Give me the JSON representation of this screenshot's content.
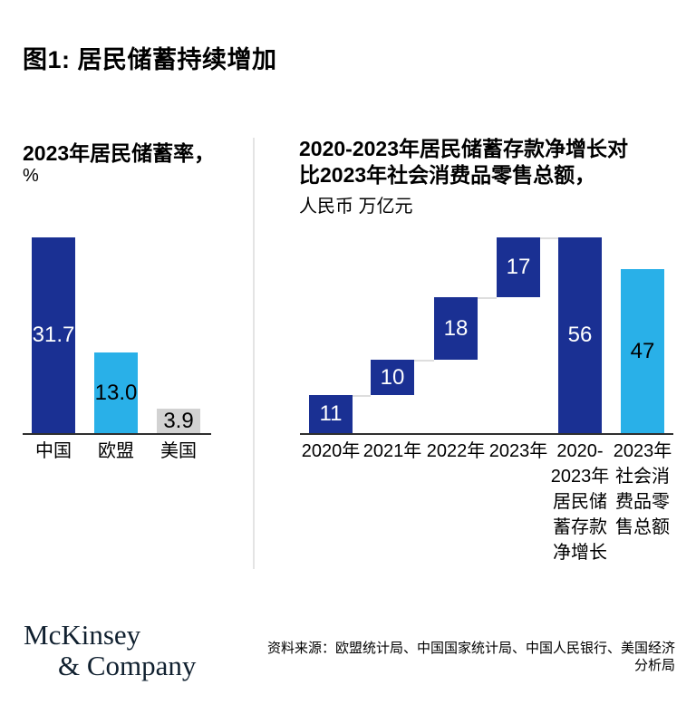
{
  "page": {
    "title": "图1: 居民储蓄持续增加"
  },
  "colors": {
    "navy": "#1a3093",
    "cyan": "#29b0e8",
    "gray": "#d2d2d2",
    "axis": "#2f2f2f",
    "divider": "#e4e4e4",
    "logo_text": "#10202f"
  },
  "left_chart": {
    "title": "2023年居民储蓄率，",
    "unit": "%"
  },
  "right_chart": {
    "title_line1": "2020-2023年居民储蓄存款净增长对",
    "title_line2": "比2023年社会消费品零售总额，",
    "unit": "人民币 万亿元"
  },
  "footer": {
    "logo_line1": "McKinsey",
    "logo_line2": "& Company",
    "source_line1": "资料来源：欧盟统计局、中国国家统计局、中国人民银行、美国经济",
    "source_line2": "分析局"
  },
  "chart_data": [
    {
      "type": "bar",
      "title": "2023年居民储蓄率",
      "unit": "%",
      "categories": [
        "中国",
        "欧盟",
        "美国"
      ],
      "values": [
        31.7,
        13.0,
        3.9
      ],
      "value_labels": [
        "31.7",
        "13.0",
        "3.9"
      ],
      "bar_colors": [
        "navy",
        "cyan",
        "gray"
      ],
      "ylim": [
        0,
        31.7
      ],
      "grid": false,
      "legend": "none"
    },
    {
      "type": "waterfall",
      "title": "2020-2023年居民储蓄存款净增长对比2023年社会消费品零售总额",
      "unit": "人民币 万亿元",
      "categories": [
        "2020年",
        "2021年",
        "2022年",
        "2023年",
        "2020-2023年居民储蓄存款净增长",
        "2023年社会消费品零售总额"
      ],
      "category_label_lines": [
        [
          "2020年"
        ],
        [
          "2021年"
        ],
        [
          "2022年"
        ],
        [
          "2023年"
        ],
        [
          "2020-",
          "2023年",
          "居民储",
          "蓄存款",
          "净增长"
        ],
        [
          "2023年",
          "社会消",
          "费品零",
          "售总额"
        ]
      ],
      "values": [
        11,
        10,
        18,
        17,
        56,
        47
      ],
      "value_labels": [
        "11",
        "10",
        "18",
        "17",
        "56",
        "47"
      ],
      "segment_start": [
        0,
        11,
        21,
        39,
        0,
        0
      ],
      "segment_end": [
        11,
        21,
        39,
        56,
        56,
        47
      ],
      "connector_levels": [
        11,
        21,
        39,
        56
      ],
      "bar_colors": [
        "navy",
        "navy",
        "navy",
        "navy",
        "navy",
        "cyan"
      ],
      "ylim": [
        0,
        56
      ],
      "grid": false,
      "legend": "none"
    }
  ]
}
